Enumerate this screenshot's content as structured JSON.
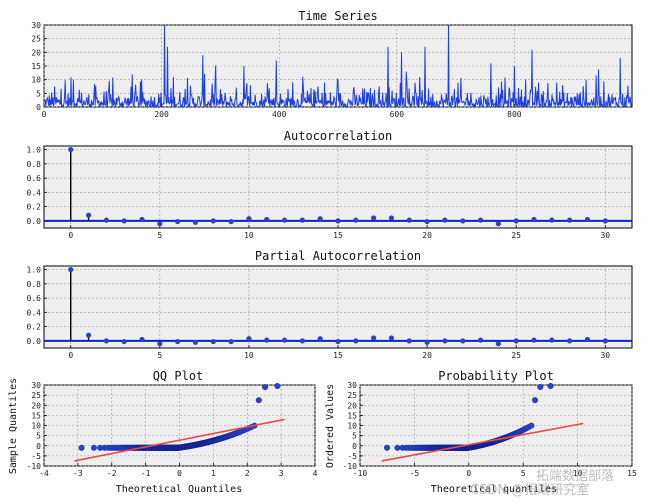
{
  "chart_data": [
    {
      "id": "ts",
      "type": "line",
      "title": "Time Series",
      "xlim": [
        0,
        1000
      ],
      "ylim": [
        0,
        30
      ],
      "xticks": [
        0,
        200,
        400,
        600,
        800
      ],
      "yticks": [
        0,
        5,
        10,
        15,
        20,
        25,
        30
      ],
      "grid": true,
      "color": "#1f3fe0"
    },
    {
      "id": "acf",
      "type": "stem",
      "title": "Autocorrelation",
      "xlim": [
        -1.5,
        31.5
      ],
      "ylim": [
        -0.1,
        1.05
      ],
      "xticks": [
        0,
        5,
        10,
        15,
        20,
        25,
        30
      ],
      "yticks": [
        0.0,
        0.2,
        0.4,
        0.6,
        0.8,
        1.0
      ],
      "grid": true,
      "lags": [
        0,
        1,
        2,
        3,
        4,
        5,
        6,
        7,
        8,
        9,
        10,
        11,
        12,
        13,
        14,
        15,
        16,
        17,
        18,
        19,
        20,
        21,
        22,
        23,
        24,
        25,
        26,
        27,
        28,
        29,
        30
      ],
      "values": [
        1.0,
        0.08,
        0.01,
        0.0,
        0.02,
        -0.04,
        -0.01,
        -0.02,
        0.0,
        -0.01,
        0.03,
        0.02,
        0.01,
        0.01,
        0.03,
        0.0,
        0.01,
        0.04,
        0.04,
        0.01,
        -0.01,
        0.01,
        0.0,
        0.01,
        -0.04,
        0.0,
        0.02,
        0.01,
        0.01,
        0.02,
        0.0
      ]
    },
    {
      "id": "pacf",
      "type": "stem",
      "title": "Partial Autocorrelation",
      "xlim": [
        -1.5,
        31.5
      ],
      "ylim": [
        -0.1,
        1.05
      ],
      "xticks": [
        0,
        5,
        10,
        15,
        20,
        25,
        30
      ],
      "yticks": [
        0.0,
        0.2,
        0.4,
        0.6,
        0.8,
        1.0
      ],
      "grid": true,
      "lags": [
        0,
        1,
        2,
        3,
        4,
        5,
        6,
        7,
        8,
        9,
        10,
        11,
        12,
        13,
        14,
        15,
        16,
        17,
        18,
        19,
        20,
        21,
        22,
        23,
        24,
        25,
        26,
        27,
        28,
        29,
        30
      ],
      "values": [
        1.0,
        0.08,
        0.0,
        -0.01,
        0.02,
        -0.04,
        -0.01,
        -0.02,
        -0.01,
        -0.01,
        0.03,
        0.01,
        0.01,
        0.0,
        0.03,
        -0.01,
        0.0,
        0.04,
        0.04,
        0.0,
        -0.02,
        0.0,
        0.0,
        0.01,
        -0.04,
        0.0,
        0.01,
        0.01,
        0.0,
        0.02,
        0.0
      ]
    },
    {
      "id": "qq",
      "type": "scatter",
      "title": "QQ Plot",
      "xlabel": "Theoretical Quantiles",
      "ylabel": "Sample Quantiles",
      "xlim": [
        -4,
        4
      ],
      "ylim": [
        -10,
        30
      ],
      "xticks": [
        -4,
        -3,
        -2,
        -1,
        0,
        1,
        2,
        3,
        4
      ],
      "yticks": [
        -10,
        -5,
        0,
        5,
        10,
        15,
        20,
        25,
        30
      ],
      "grid": true,
      "fit_line": {
        "x": [
          -3.1,
          3.1
        ],
        "y": [
          -7.5,
          13.0
        ],
        "color": "#e84a4a"
      }
    },
    {
      "id": "prob",
      "type": "scatter",
      "title": "Probability Plot",
      "ylabel": "Ordered Values",
      "xlabel": "Theoretical quantiles",
      "xlim": [
        -10,
        15
      ],
      "ylim": [
        -10,
        30
      ],
      "xticks": [
        -10,
        -5,
        0,
        5,
        10,
        15
      ],
      "yticks": [
        -10,
        -5,
        0,
        5,
        10,
        15,
        20,
        25,
        30
      ],
      "grid": true,
      "fit_line": {
        "x": [
          -8.0,
          10.5
        ],
        "y": [
          -7.5,
          11.0
        ],
        "color": "#e84a4a"
      }
    }
  ],
  "watermark": {
    "line1": "拓端数据部落",
    "line2": "CSDN @拓端研究室"
  },
  "colors": {
    "series": "#1f3fe0",
    "stem": "#000000",
    "marker": "#2b41c8",
    "baseline": "#0a23c9",
    "fit": "#e84a4a",
    "panel_bg": "#eeeeee",
    "grid": "#9a9a9a"
  }
}
